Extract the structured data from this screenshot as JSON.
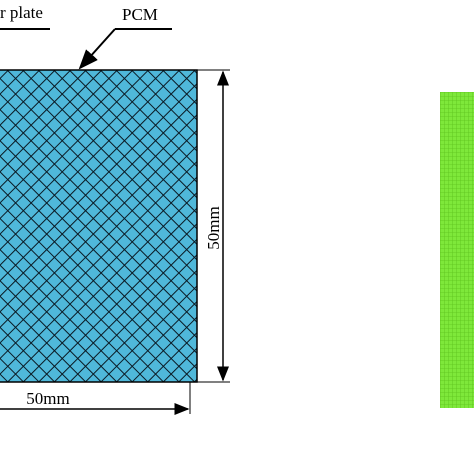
{
  "labels": {
    "plate": "r plate",
    "pcm": "PCM",
    "height": "50mm",
    "width": "50mm"
  }
}
